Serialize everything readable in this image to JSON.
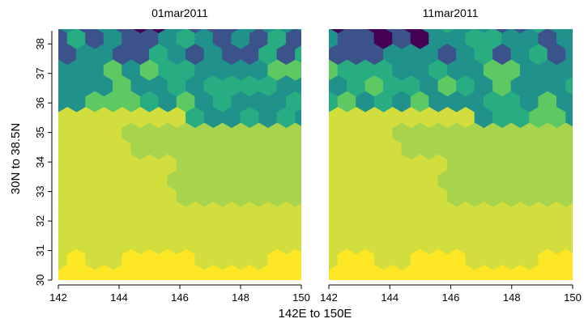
{
  "chart_data": {
    "type": "heatmap",
    "subtype": "hexbin",
    "panels": [
      {
        "title": "01mar2011",
        "x": [
          142,
          150
        ],
        "y": [
          30,
          38.5
        ],
        "zones": {
          "dark_top": [
            [
              144.2,
              145.5
            ],
            38.35
          ],
          "teal_bottom": [
            [
              142,
              146
            ],
            36.0,
            [
              146,
              150
            ],
            35.4
          ]
        }
      },
      {
        "title": "11mar2011",
        "x": [
          142,
          150
        ],
        "y": [
          30,
          38.5
        ],
        "zones": {
          "dark_top": [
            [
              142.2,
              145.2
            ],
            37.9
          ],
          "teal_bottom": [
            [
              142,
              146.5
            ],
            36.0,
            [
              146.5,
              150
            ],
            35.4
          ]
        }
      }
    ],
    "xlabel": "142E to 150E",
    "ylabel": "30N to 38.5N",
    "xticks": [
      "142",
      "144",
      "146",
      "148",
      "150"
    ],
    "yticks": [
      "30",
      "31",
      "32",
      "33",
      "34",
      "35",
      "36",
      "37",
      "38"
    ],
    "xlim": [
      142,
      150
    ],
    "ylim": [
      30,
      38.5
    ],
    "colormap": [
      "#440154",
      "#3b528b",
      "#21918c",
      "#27ad81",
      "#5ec962",
      "#a8d34c",
      "#d2de3d",
      "#fde725"
    ],
    "grid": false,
    "legend": "none"
  }
}
